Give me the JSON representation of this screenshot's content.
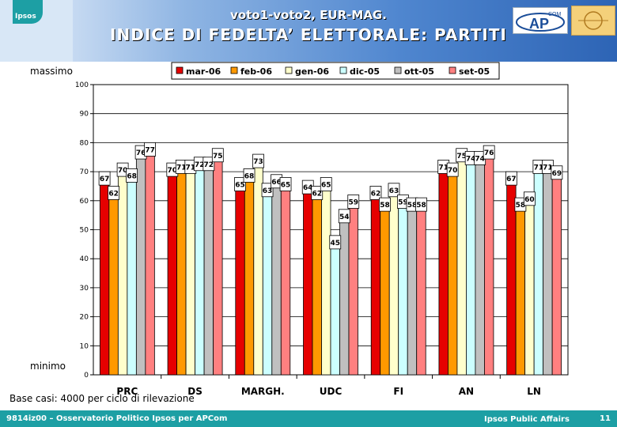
{
  "header": {
    "title_line1": "voto1-voto2, EUR-MAG.",
    "title_line2": "INDICE DI FEDELTA’ ELETTORALE: PARTITI",
    "logo_text": "Ipsos",
    "apcom_logo_text": "APCOM"
  },
  "labels": {
    "top": "massimo",
    "bottom": "minimo",
    "base_note": "Base casi: 4000 per ciclo di rilevazione"
  },
  "footer": {
    "left": "9814iz00 – Osservatorio Politico Ipsos per APCom",
    "center": "Ipsos Public Affairs",
    "page": "11"
  },
  "colors": {
    "mar-06": "#e60000",
    "feb-06": "#ff9900",
    "gen-06": "#ffffcc",
    "dic-05": "#ccffff",
    "ott-05": "#c0c0c0",
    "set-05": "#ff8080"
  },
  "chart_data": {
    "type": "bar",
    "categories": [
      "PRC",
      "DS",
      "MARGH.",
      "UDC",
      "FI",
      "AN",
      "LN"
    ],
    "series": [
      {
        "name": "mar-06",
        "values": [
          67,
          70,
          65,
          64,
          62,
          71,
          67
        ]
      },
      {
        "name": "feb-06",
        "values": [
          62,
          71,
          68,
          62,
          58,
          70,
          58
        ]
      },
      {
        "name": "gen-06",
        "values": [
          70,
          71,
          73,
          65,
          63,
          75,
          60
        ]
      },
      {
        "name": "dic-05",
        "values": [
          68,
          72,
          63,
          45,
          59,
          74,
          71
        ]
      },
      {
        "name": "ott-05",
        "values": [
          76,
          72,
          66,
          54,
          58,
          74,
          71
        ]
      },
      {
        "name": "set-05",
        "values": [
          77,
          75,
          65,
          59,
          58,
          76,
          69
        ]
      }
    ],
    "yticks": [
      "0",
      "10",
      "20",
      "30",
      "40",
      "50",
      "60",
      "70",
      "80",
      "90",
      "100"
    ],
    "ylim": [
      0,
      100
    ],
    "grid": true,
    "legend": "top"
  }
}
